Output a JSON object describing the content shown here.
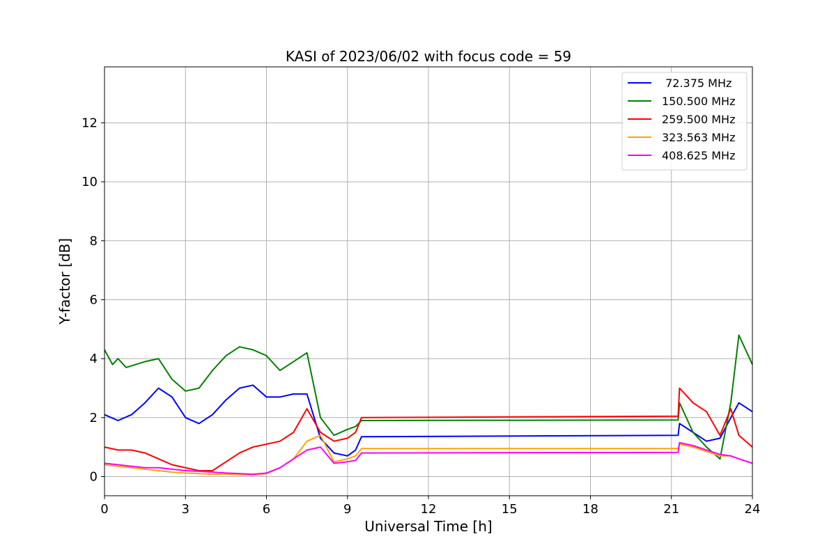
{
  "chart_data": {
    "type": "line",
    "title": "KASI of 2023/06/02 with focus code = 59",
    "xlabel": "Universal Time [h]",
    "ylabel": "Y-factor [dB]",
    "xlim": [
      0,
      24
    ],
    "ylim": [
      -0.65,
      13.9
    ],
    "xticks": [
      0,
      3,
      6,
      9,
      12,
      15,
      18,
      21,
      24
    ],
    "yticks": [
      0,
      2,
      4,
      6,
      8,
      10,
      12
    ],
    "grid": true,
    "legend_position": "top-right",
    "series": [
      {
        "name": " 72.375 MHz",
        "color": "#0000ff",
        "x": [
          0,
          0.5,
          1,
          1.5,
          2,
          2.5,
          3,
          3.5,
          4,
          4.5,
          5,
          5.5,
          6,
          6.5,
          7,
          7.5,
          8,
          8.5,
          9,
          9.3,
          9.52,
          21.25,
          21.3,
          21.8,
          22.3,
          22.8,
          23.2,
          23.5,
          24
        ],
        "y": [
          2.1,
          1.9,
          2.1,
          2.5,
          3.0,
          2.7,
          2.0,
          1.8,
          2.1,
          2.6,
          3.0,
          3.1,
          2.7,
          2.7,
          2.8,
          2.8,
          1.3,
          0.8,
          0.7,
          0.9,
          1.35,
          1.4,
          1.8,
          1.5,
          1.2,
          1.3,
          2.0,
          2.5,
          2.2
        ]
      },
      {
        "name": "150.500 MHz",
        "color": "#008000",
        "x": [
          0,
          0.3,
          0.5,
          0.8,
          1.5,
          2,
          2.5,
          3,
          3.5,
          4,
          4.5,
          5,
          5.5,
          6,
          6.5,
          7,
          7.5,
          8,
          8.5,
          9,
          9.3,
          9.52,
          21.25,
          21.3,
          21.8,
          22.3,
          22.8,
          23.2,
          23.5,
          24
        ],
        "y": [
          4.3,
          3.8,
          4.0,
          3.7,
          3.9,
          4.0,
          3.3,
          2.9,
          3.0,
          3.6,
          4.1,
          4.4,
          4.3,
          4.1,
          3.6,
          3.9,
          4.2,
          2.0,
          1.4,
          1.6,
          1.7,
          1.9,
          1.92,
          2.5,
          1.5,
          1.0,
          0.6,
          2.5,
          4.8,
          3.8
        ]
      },
      {
        "name": "259.500 MHz",
        "color": "#ff0000",
        "x": [
          0,
          0.5,
          1,
          1.5,
          2,
          2.5,
          3,
          3.5,
          4,
          4.5,
          5,
          5.5,
          6,
          6.5,
          7,
          7.5,
          8,
          8.5,
          9,
          9.3,
          9.52,
          21.25,
          21.3,
          21.8,
          22.3,
          22.8,
          23.2,
          23.5,
          24
        ],
        "y": [
          1.0,
          0.9,
          0.9,
          0.8,
          0.6,
          0.4,
          0.3,
          0.2,
          0.2,
          0.5,
          0.8,
          1.0,
          1.1,
          1.2,
          1.5,
          2.3,
          1.5,
          1.2,
          1.3,
          1.5,
          2.0,
          2.05,
          3.0,
          2.5,
          2.2,
          1.4,
          2.3,
          1.4,
          1.0
        ]
      },
      {
        "name": "323.563 MHz",
        "color": "#ffa500",
        "x": [
          0,
          0.5,
          1,
          1.5,
          2,
          2.5,
          3,
          3.5,
          4,
          4.5,
          5,
          5.5,
          6,
          6.5,
          7,
          7.5,
          8,
          8.5,
          9,
          9.3,
          9.52,
          21.25,
          21.3,
          21.8,
          22.3,
          22.8,
          23.2,
          23.5,
          24
        ],
        "y": [
          0.4,
          0.35,
          0.3,
          0.25,
          0.2,
          0.15,
          0.12,
          0.1,
          0.08,
          0.08,
          0.07,
          0.05,
          0.1,
          0.3,
          0.6,
          1.2,
          1.4,
          0.5,
          0.6,
          0.7,
          0.95,
          0.95,
          1.1,
          1.0,
          0.85,
          0.7,
          0.7,
          0.6,
          0.45
        ]
      },
      {
        "name": "408.625 MHz",
        "color": "#ff00ff",
        "x": [
          0,
          0.5,
          1,
          1.5,
          2,
          2.5,
          3,
          3.5,
          4,
          4.5,
          5,
          5.5,
          6,
          6.5,
          7,
          7.5,
          8,
          8.5,
          9,
          9.3,
          9.52,
          21.25,
          21.3,
          21.8,
          22.3,
          22.8,
          23.2,
          23.5,
          24
        ],
        "y": [
          0.45,
          0.4,
          0.35,
          0.3,
          0.3,
          0.25,
          0.2,
          0.18,
          0.15,
          0.12,
          0.1,
          0.08,
          0.12,
          0.3,
          0.6,
          0.9,
          1.0,
          0.45,
          0.5,
          0.55,
          0.8,
          0.82,
          1.15,
          1.05,
          0.9,
          0.75,
          0.7,
          0.6,
          0.45
        ]
      }
    ]
  }
}
